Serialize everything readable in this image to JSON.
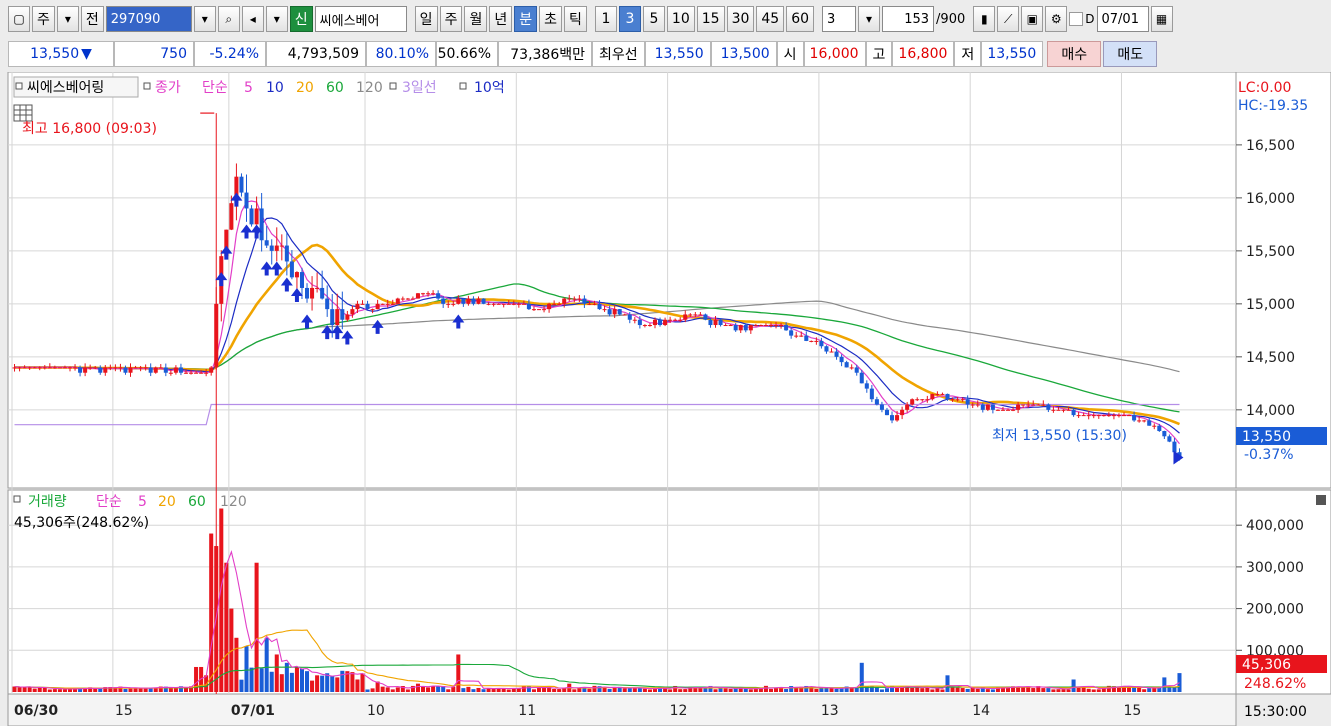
{
  "toolbar": {
    "market_label": "주",
    "prev_label": "전",
    "code": "297090",
    "name": "씨에스베어",
    "badge_new": "신",
    "periods": [
      "일",
      "주",
      "월",
      "년"
    ],
    "units": [
      "분",
      "초",
      "틱"
    ],
    "minutes": [
      "1",
      "3",
      "5",
      "10",
      "15",
      "30",
      "45",
      "60"
    ],
    "active_minute": "3",
    "count": "3",
    "range_value": "153",
    "range_total": "/900",
    "date_check": "D",
    "date": "07/01"
  },
  "quote": {
    "price": "13,550",
    "arrow": "▼",
    "change": "750",
    "change_pct": "-5.24%",
    "volume": "4,793,509",
    "vol_ratio": "80.10%",
    "rate2": "50.66%",
    "amount": "73,386백만",
    "best_label": "최우선",
    "best_ask": "13,550",
    "best_bid": "13,500",
    "open_label": "시",
    "open": "16,000",
    "high_label": "고",
    "high": "16,800",
    "low_label": "저",
    "low": "13,550",
    "buy_label": "매수",
    "sell_label": "매도"
  },
  "colors": {
    "up": "#e8141c",
    "down": "#1a5cd6",
    "ma5": "#e23fc8",
    "ma10": "#1c2cc4",
    "ma20": "#f0a400",
    "ma60": "#1aa83a",
    "ma120": "#8a8a8a",
    "line3": "#b58ee8"
  },
  "legend_price": {
    "name": "씨에스베어링",
    "items": [
      {
        "label": "종가",
        "color": "#e23fc8"
      },
      {
        "label": "단순",
        "color": "#e23fc8"
      },
      {
        "label": "5",
        "color": "#e23fc8"
      },
      {
        "label": "10",
        "color": "#1c2cc4"
      },
      {
        "label": "20",
        "color": "#f0a400"
      },
      {
        "label": "60",
        "color": "#1aa83a"
      },
      {
        "label": "120",
        "color": "#8a8a8a"
      },
      {
        "label": "3일선",
        "color": "#b58ee8"
      },
      {
        "label": "10억",
        "color": "#1c2cc4"
      }
    ]
  },
  "legend_volume": {
    "name": "거래량",
    "items": [
      {
        "label": "단순",
        "color": "#e23fc8"
      },
      {
        "label": "5",
        "color": "#e23fc8"
      },
      {
        "label": "20",
        "color": "#f0a400"
      },
      {
        "label": "60",
        "color": "#1aa83a"
      },
      {
        "label": "120",
        "color": "#8a8a8a"
      }
    ],
    "current": "45,306주(248.62%)"
  },
  "annotations": {
    "high": "최고 16,800 (09:03)",
    "low": "최저 13,550 (15:30)",
    "lc": "LC:0.00",
    "hc": "HC:-19.35",
    "price_tag": "13,550",
    "price_pct": "-0.37%",
    "vol_tag": "45,306",
    "vol_pct": "248.62%",
    "time_end": "15:30:00"
  },
  "chart_data": {
    "type": "candlestick",
    "price_axis": {
      "ticks": [
        14000,
        14500,
        15000,
        15500,
        16000,
        16500
      ],
      "labels": [
        "14,000",
        "14,500",
        "15,000",
        "15,500",
        "16,000",
        "16,500"
      ],
      "ylim": [
        13300,
        17150
      ]
    },
    "volume_axis": {
      "ticks": [
        100000,
        200000,
        300000,
        400000
      ],
      "labels": [
        "100,000",
        "200,000",
        "300,000",
        "400,000"
      ],
      "ylim": [
        0,
        470000
      ]
    },
    "x_labels": [
      {
        "label": "06/30",
        "bar": 0
      },
      {
        "label": "15",
        "bar": 20
      },
      {
        "label": "07/01",
        "bar": 43
      },
      {
        "label": "10",
        "bar": 70
      },
      {
        "label": "11",
        "bar": 100
      },
      {
        "label": "12",
        "bar": 130
      },
      {
        "label": "13",
        "bar": 160
      },
      {
        "label": "14",
        "bar": 190
      },
      {
        "label": "15",
        "bar": 220
      }
    ],
    "bar_count": 232,
    "ohlc_anchors": [
      [
        0,
        14400
      ],
      [
        20,
        14380
      ],
      [
        38,
        14350
      ],
      [
        39,
        14400
      ],
      [
        40,
        14950
      ],
      [
        42,
        15800
      ],
      [
        44,
        16200
      ],
      [
        46,
        15900
      ],
      [
        48,
        15800
      ],
      [
        50,
        15600
      ],
      [
        52,
        15500
      ],
      [
        54,
        15400
      ],
      [
        56,
        15300
      ],
      [
        58,
        15100
      ],
      [
        60,
        15200
      ],
      [
        62,
        14900
      ],
      [
        64,
        14850
      ],
      [
        66,
        14900
      ],
      [
        68,
        15000
      ],
      [
        70,
        14950
      ],
      [
        74,
        15000
      ],
      [
        78,
        15050
      ],
      [
        82,
        15100
      ],
      [
        86,
        15000
      ],
      [
        90,
        15050
      ],
      [
        95,
        15000
      ],
      [
        100,
        15000
      ],
      [
        105,
        14950
      ],
      [
        110,
        15050
      ],
      [
        115,
        15000
      ],
      [
        120,
        14900
      ],
      [
        125,
        14800
      ],
      [
        130,
        14850
      ],
      [
        135,
        14900
      ],
      [
        140,
        14800
      ],
      [
        145,
        14750
      ],
      [
        150,
        14800
      ],
      [
        155,
        14700
      ],
      [
        160,
        14600
      ],
      [
        163,
        14500
      ],
      [
        166,
        14400
      ],
      [
        170,
        14100
      ],
      [
        174,
        13900
      ],
      [
        178,
        14100
      ],
      [
        182,
        14150
      ],
      [
        186,
        14100
      ],
      [
        190,
        14050
      ],
      [
        195,
        14000
      ],
      [
        200,
        14050
      ],
      [
        205,
        14000
      ],
      [
        210,
        13950
      ],
      [
        215,
        13950
      ],
      [
        220,
        13950
      ],
      [
        225,
        13850
      ],
      [
        228,
        13750
      ],
      [
        231,
        13550
      ]
    ],
    "volume_spikes": [
      [
        36,
        60000
      ],
      [
        37,
        60000
      ],
      [
        38,
        40000
      ],
      [
        39,
        380000
      ],
      [
        40,
        350000
      ],
      [
        41,
        440000
      ],
      [
        42,
        310000
      ],
      [
        43,
        200000
      ],
      [
        44,
        130000
      ],
      [
        46,
        110000
      ],
      [
        48,
        310000
      ],
      [
        50,
        130000
      ],
      [
        52,
        90000
      ],
      [
        54,
        70000
      ],
      [
        56,
        60000
      ],
      [
        58,
        50000
      ],
      [
        60,
        40000
      ],
      [
        62,
        45000
      ],
      [
        64,
        35000
      ],
      [
        68,
        30000
      ],
      [
        72,
        25000
      ],
      [
        80,
        20000
      ],
      [
        88,
        90000
      ],
      [
        110,
        20000
      ],
      [
        140,
        12000
      ],
      [
        168,
        70000
      ],
      [
        185,
        40000
      ],
      [
        210,
        30000
      ],
      [
        228,
        35000
      ],
      [
        231,
        45306
      ]
    ],
    "value_high": 16800,
    "value_low": 13550,
    "value_last": 13550
  }
}
